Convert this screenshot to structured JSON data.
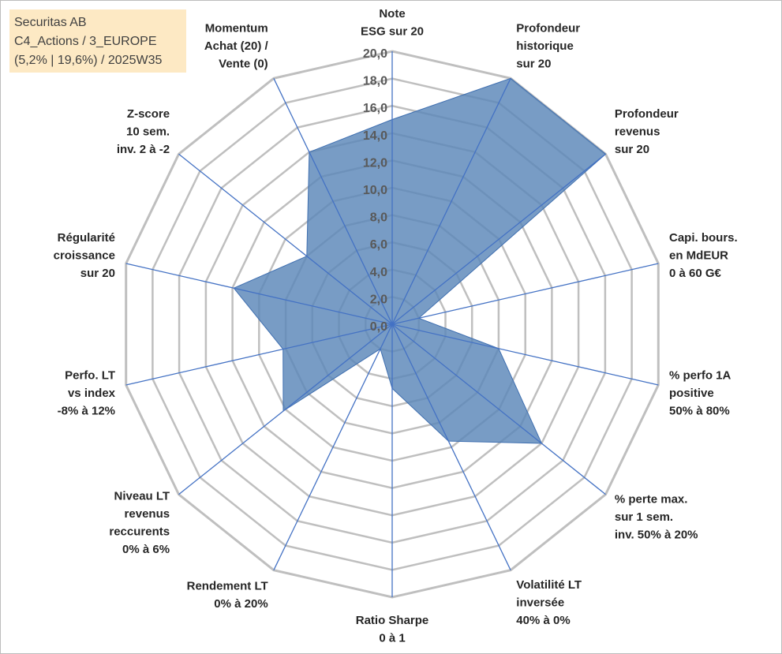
{
  "info_box": {
    "line1": "Securitas AB",
    "line2": "C4_Actions / 3_EUROPE",
    "line3": "(5,2% | 19,6%) / 2025W35"
  },
  "colors": {
    "fill": "#5a86b8",
    "stroke": "#3f6fb0",
    "axis": "#4472c4",
    "grid": "#bfbfbf",
    "info_bg": "#fde9c4"
  },
  "chart_data": {
    "type": "radar",
    "title": "",
    "rmin": 0,
    "rmax": 20,
    "tick_step": 2,
    "tick_labels": [
      "0,0",
      "2,0",
      "4,0",
      "6,0",
      "8,0",
      "10,0",
      "12,0",
      "14,0",
      "16,0",
      "18,0",
      "20,0"
    ],
    "grid": true,
    "axes": [
      [
        "Note",
        "ESG sur 20"
      ],
      [
        "Profondeur",
        "historique",
        "sur 20"
      ],
      [
        "Profondeur",
        "revenus",
        "sur 20"
      ],
      [
        "Capi. bours.",
        "en MdEUR",
        "0 à 60 G€"
      ],
      [
        "% perfo 1A",
        "positive",
        "50% à 80%"
      ],
      [
        "% perte max.",
        "sur 1 sem.",
        "inv. 50% à 20%"
      ],
      [
        "Volatilité LT",
        "inversée",
        "40% à 0%"
      ],
      [
        "Ratio Sharpe",
        "0 à 1"
      ],
      [
        "Rendement LT",
        "0% à 20%"
      ],
      [
        "Niveau LT",
        "revenus",
        "reccurents",
        "0% à 6%"
      ],
      [
        "Perfo. LT",
        "vs index",
        "-8% à 12%"
      ],
      [
        "Régularité",
        "croissance",
        "sur 20"
      ],
      [
        "Z-score",
        "10 sem.",
        "inv. 2 à -2"
      ],
      [
        "Momentum",
        "Achat (20) /",
        "Vente (0)"
      ]
    ],
    "values": [
      15.0,
      20.0,
      20.0,
      2.0,
      8.0,
      14.0,
      9.5,
      4.7,
      2.0,
      10.2,
      8.2,
      11.9,
      8.0,
      14.0
    ]
  }
}
